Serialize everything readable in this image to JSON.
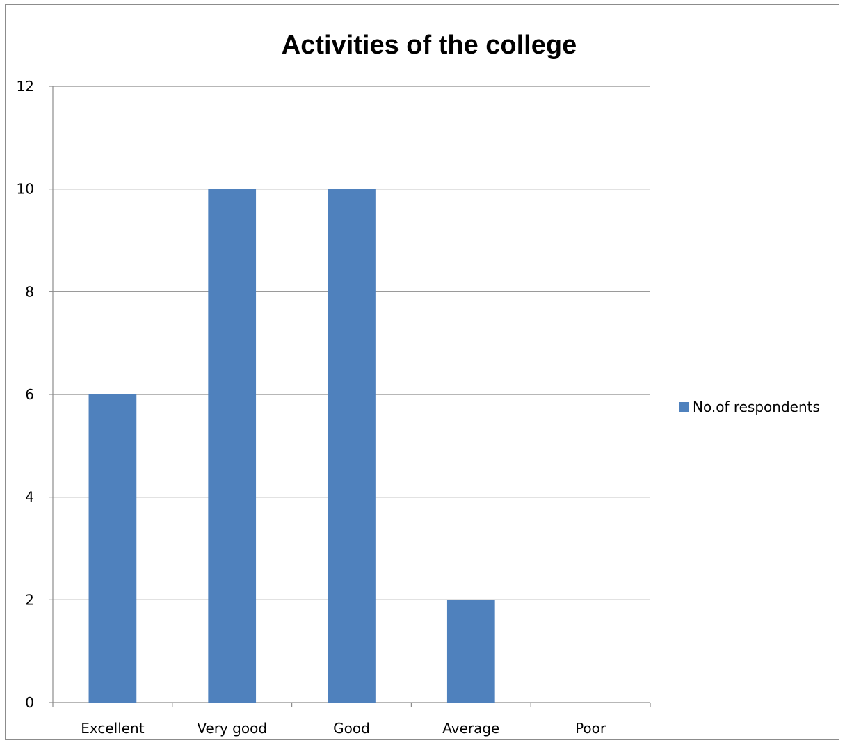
{
  "chart_data": {
    "type": "bar",
    "title": "Activities of the college",
    "categories": [
      "Excellent",
      "Very good",
      "Good",
      "Average",
      "Poor"
    ],
    "series": [
      {
        "name": "No.of respondents",
        "values": [
          6,
          10,
          10,
          2,
          0
        ],
        "color": "#4f81bd"
      }
    ],
    "ylim": [
      0,
      12
    ],
    "yticks": [
      0,
      2,
      4,
      6,
      8,
      10,
      12
    ],
    "grid": true,
    "legend_position": "right",
    "xlabel": "",
    "ylabel": ""
  }
}
